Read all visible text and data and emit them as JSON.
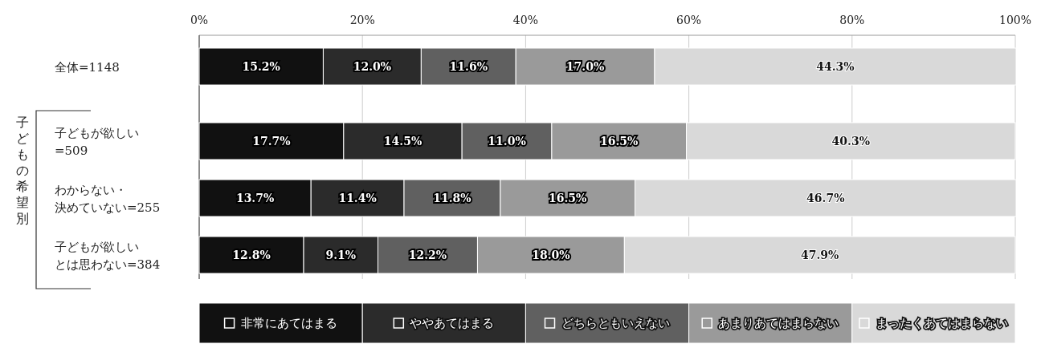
{
  "chart_data": {
    "type": "bar",
    "orientation": "horizontal",
    "stacked": true,
    "grid": "x",
    "legend": "bottom",
    "categories": [
      "全体=1148",
      "子どもが欲しい=509",
      "わからない・決めていない=255",
      "子どもが欲しいとは思わない=384"
    ],
    "annotations": [
      "子どもの希望別"
    ],
    "xlim": [
      0,
      100
    ],
    "xticks": [
      {
        "value": 0,
        "label": "0%"
      },
      {
        "value": 20,
        "label": "20%"
      },
      {
        "value": 40,
        "label": "40%"
      },
      {
        "value": 60,
        "label": "60%"
      },
      {
        "value": 80,
        "label": "80%"
      },
      {
        "value": 100,
        "label": "100%"
      }
    ],
    "series": [
      {
        "name": "非常にあてはまる",
        "color": "#111111",
        "values": [
          15.2,
          17.7,
          13.7,
          12.8
        ],
        "value_labels": [
          "15.2%",
          "17.7%",
          "13.7%",
          "12.8%"
        ]
      },
      {
        "name": "ややあてはまる",
        "color": "#2b2b2b",
        "values": [
          12.0,
          14.5,
          11.4,
          9.1
        ],
        "value_labels": [
          "12.0%",
          "14.5%",
          "11.4%",
          "9.1%"
        ]
      },
      {
        "name": "どちらともいえない",
        "color": "#606060",
        "values": [
          11.6,
          11.0,
          11.8,
          12.2
        ],
        "value_labels": [
          "11.6%",
          "11.0%",
          "11.8%",
          "12.2%"
        ]
      },
      {
        "name": "あまりあてはまらない",
        "color": "#9a9a9a",
        "values": [
          17.0,
          16.5,
          16.5,
          18.0
        ],
        "value_labels": [
          "17.0%",
          "16.5%",
          "16.5%",
          "18.0%"
        ]
      },
      {
        "name": "まったくあてはまらない",
        "color": "#d9d9d9",
        "values": [
          44.3,
          40.3,
          46.7,
          47.9
        ],
        "value_labels": [
          "44.3%",
          "40.3%",
          "46.7%",
          "47.9%"
        ]
      }
    ]
  }
}
